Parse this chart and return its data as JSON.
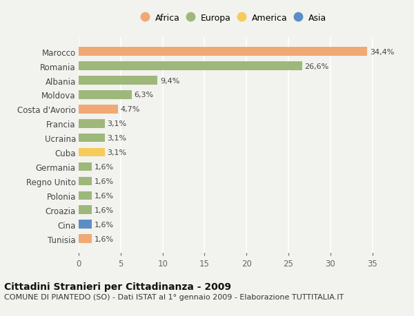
{
  "categories": [
    "Tunisia",
    "Cina",
    "Croazia",
    "Polonia",
    "Regno Unito",
    "Germania",
    "Cuba",
    "Ucraina",
    "Francia",
    "Costa d'Avorio",
    "Moldova",
    "Albania",
    "Romania",
    "Marocco"
  ],
  "values": [
    1.6,
    1.6,
    1.6,
    1.6,
    1.6,
    1.6,
    3.1,
    3.1,
    3.1,
    4.7,
    6.3,
    9.4,
    26.6,
    34.4
  ],
  "colors": [
    "#f0a875",
    "#5b8ec4",
    "#9db87a",
    "#9db87a",
    "#9db87a",
    "#9db87a",
    "#f5cc5a",
    "#9db87a",
    "#9db87a",
    "#f0a875",
    "#9db87a",
    "#9db87a",
    "#9db87a",
    "#f0a875"
  ],
  "labels": [
    "1,6%",
    "1,6%",
    "1,6%",
    "1,6%",
    "1,6%",
    "1,6%",
    "3,1%",
    "3,1%",
    "3,1%",
    "4,7%",
    "6,3%",
    "9,4%",
    "26,6%",
    "34,4%"
  ],
  "legend": [
    {
      "label": "Africa",
      "color": "#f0a875"
    },
    {
      "label": "Europa",
      "color": "#9db87a"
    },
    {
      "label": "America",
      "color": "#f5cc5a"
    },
    {
      "label": "Asia",
      "color": "#5b8ec4"
    }
  ],
  "xlim": [
    0,
    37
  ],
  "xticks": [
    0,
    5,
    10,
    15,
    20,
    25,
    30,
    35
  ],
  "title": "Cittadini Stranieri per Cittadinanza - 2009",
  "subtitle": "COMUNE DI PIANTEDO (SO) - Dati ISTAT al 1° gennaio 2009 - Elaborazione TUTTITALIA.IT",
  "background_color": "#f2f2ee",
  "bar_height": 0.6,
  "grid_color": "#ffffff",
  "label_fontsize": 8,
  "ytick_fontsize": 8.5,
  "xtick_fontsize": 8.5,
  "title_fontsize": 10,
  "subtitle_fontsize": 8
}
